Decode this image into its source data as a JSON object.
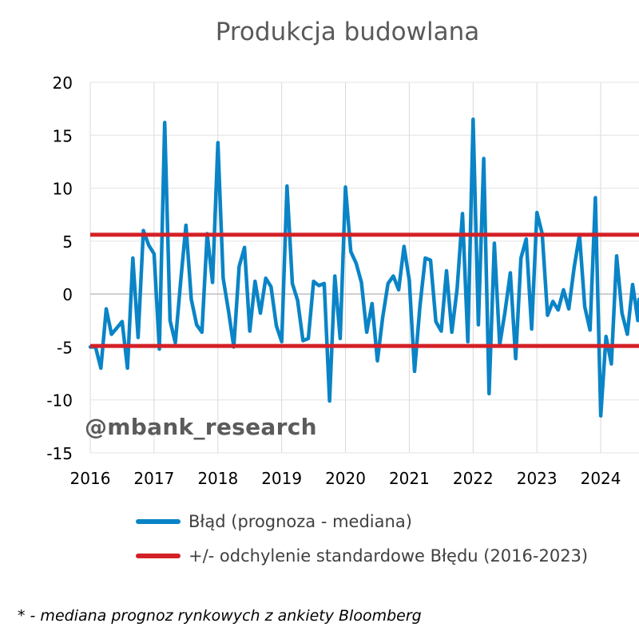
{
  "chart_data": {
    "type": "line",
    "title": "Produkcja budowlana",
    "xlabel": "",
    "ylabel": "",
    "ylim": [
      -15,
      20
    ],
    "yticks": [
      -15,
      -10,
      -5,
      0,
      5,
      10,
      15,
      20
    ],
    "xlim": [
      2016,
      2024.6
    ],
    "xticks": [
      2016,
      2017,
      2018,
      2019,
      2020,
      2021,
      2022,
      2023,
      2024
    ],
    "grid": true,
    "series": [
      {
        "name": "Błąd (prognoza - mediana)",
        "color": "#0a84c6",
        "x": [
          2016.0,
          2016.083,
          2016.167,
          2016.25,
          2016.333,
          2016.417,
          2016.5,
          2016.583,
          2016.667,
          2016.75,
          2016.833,
          2016.917,
          2017.0,
          2017.083,
          2017.167,
          2017.25,
          2017.333,
          2017.417,
          2017.5,
          2017.583,
          2017.667,
          2017.75,
          2017.833,
          2017.917,
          2018.0,
          2018.083,
          2018.167,
          2018.25,
          2018.333,
          2018.417,
          2018.5,
          2018.583,
          2018.667,
          2018.75,
          2018.833,
          2018.917,
          2019.0,
          2019.083,
          2019.167,
          2019.25,
          2019.333,
          2019.417,
          2019.5,
          2019.583,
          2019.667,
          2019.75,
          2019.833,
          2019.917,
          2020.0,
          2020.083,
          2020.167,
          2020.25,
          2020.333,
          2020.417,
          2020.5,
          2020.583,
          2020.667,
          2020.75,
          2020.833,
          2020.917,
          2021.0,
          2021.083,
          2021.167,
          2021.25,
          2021.333,
          2021.417,
          2021.5,
          2021.583,
          2021.667,
          2021.75,
          2021.833,
          2021.917,
          2022.0,
          2022.083,
          2022.167,
          2022.25,
          2022.333,
          2022.417,
          2022.5,
          2022.583,
          2022.667,
          2022.75,
          2022.833,
          2022.917,
          2023.0,
          2023.083,
          2023.167,
          2023.25,
          2023.333,
          2023.417,
          2023.5,
          2023.583,
          2023.667,
          2023.75,
          2023.833,
          2023.917,
          2024.0,
          2024.083,
          2024.167,
          2024.25,
          2024.333,
          2024.417,
          2024.5,
          2024.583,
          2024.6
        ],
        "values": [
          -5,
          -5,
          -7,
          -1.4,
          -3.8,
          -3.2,
          -2.6,
          -7,
          3.4,
          -4.1,
          6,
          4.6,
          3.8,
          -5.2,
          16.2,
          -2.5,
          -4.6,
          1.2,
          6.5,
          -0.5,
          -2.9,
          -3.6,
          5.7,
          1.1,
          14.3,
          1.5,
          -1.6,
          -5,
          2.6,
          4.4,
          -3.5,
          1.2,
          -1.8,
          1.5,
          0.7,
          -3,
          -4.5,
          10.2,
          1,
          -0.6,
          -4.4,
          -4.2,
          1.2,
          0.8,
          1,
          -10.1,
          1.7,
          -4.2,
          10.1,
          4,
          2.9,
          1.1,
          -3.6,
          -0.9,
          -6.3,
          -2.2,
          1,
          1.7,
          0.4,
          4.5,
          1.3,
          -7.3,
          -1.1,
          3.4,
          3.2,
          -2.6,
          -3.5,
          2.2,
          -3.6,
          0.5,
          7.6,
          -4.5,
          16.5,
          -2.9,
          12.8,
          -9.4,
          4.8,
          -4.8,
          -1.7,
          2,
          -6.1,
          3.4,
          5.2,
          -3.3,
          7.7,
          5.7,
          -2,
          -0.7,
          -1.5,
          0.4,
          -1.4,
          2.5,
          5.6,
          -1.2,
          -3.4,
          9.1,
          -11.5,
          -4,
          -6.6,
          3.6,
          -1.8,
          -3.8,
          0.9,
          -2.5,
          -0.5
        ]
      },
      {
        "name": "+/- odchylenie standardowe Błędu (2016-2023)",
        "color": "#d42027",
        "upper": 5.6,
        "lower": -4.9
      }
    ]
  },
  "legend": {
    "error_label": "Błąd (prognoza - mediana)",
    "std_label": "+/- odchylenie standardowe Błędu (2016-2023)"
  },
  "watermark": "@mbank_research",
  "footnote": "* - mediana prognoz rynkowych z ankiety Bloomberg"
}
